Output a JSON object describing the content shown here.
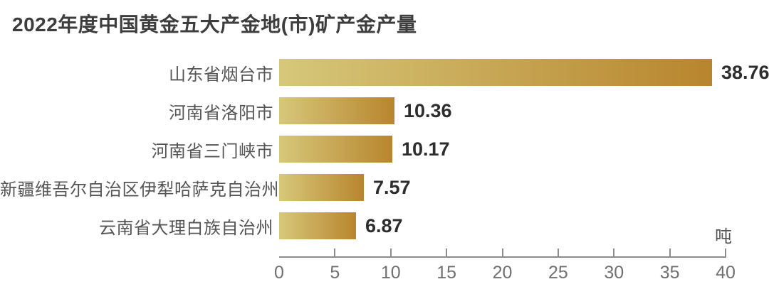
{
  "title": "2022年度中国黄金五大产金地(市)矿产金产量",
  "unit_label": "吨",
  "chart_data": {
    "type": "bar",
    "orientation": "horizontal",
    "title": "2022年度中国黄金五大产金地(市)矿产金产量",
    "categories": [
      "山东省烟台市",
      "河南省洛阳市",
      "河南省三门峡市",
      "新疆维吾尔自治区伊犁哈萨克自治州",
      "云南省大理白族自治州"
    ],
    "values": [
      38.76,
      10.36,
      10.17,
      7.57,
      6.87
    ],
    "value_labels": [
      "38.76",
      "10.36",
      "10.17",
      "7.57",
      "6.87"
    ],
    "xlabel": "吨",
    "ylabel": "",
    "xlim": [
      0,
      40
    ],
    "xticks": [
      0,
      5,
      10,
      15,
      20,
      25,
      30,
      35,
      40
    ],
    "grid": false,
    "legend_position": "none"
  },
  "colors": {
    "background": "#ffffff",
    "bar_gradient_start": "#d6c87a",
    "bar_gradient_end": "#b8852e",
    "title_text": "#3d3d3d",
    "category_label": "#555555",
    "value_label": "#2d2d2d",
    "axis_line": "#8c8c8c",
    "tick_label": "#707070",
    "unit_label": "#555555"
  }
}
